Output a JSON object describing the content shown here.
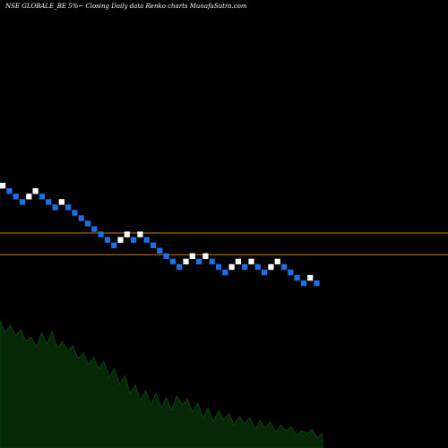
{
  "title": "NSE GLOBALE_BE 5%~  Closing Daily data  Renko  charts MunafaSutra.com",
  "colors": {
    "background": "#000000",
    "up_brick": "#ffffff",
    "down_brick": "#1e6fe6",
    "reference_line": "#c87a1e",
    "volume_fill": "#062806",
    "volume_edge": "#0d5a0d"
  },
  "chart_data": {
    "type": "renko",
    "title": "NSE GLOBALE_BE 5%~  Closing Daily data  Renko  charts MunafaSutra.com",
    "bricks": [
      {
        "dir": "up",
        "level": 0
      },
      {
        "dir": "down",
        "level": -1
      },
      {
        "dir": "down",
        "level": -2
      },
      {
        "dir": "down",
        "level": -3
      },
      {
        "dir": "up",
        "level": -2
      },
      {
        "dir": "up",
        "level": -1
      },
      {
        "dir": "down",
        "level": -2
      },
      {
        "dir": "down",
        "level": -3
      },
      {
        "dir": "down",
        "level": -4
      },
      {
        "dir": "up",
        "level": -3
      },
      {
        "dir": "down",
        "level": -4
      },
      {
        "dir": "down",
        "level": -5
      },
      {
        "dir": "down",
        "level": -6
      },
      {
        "dir": "down",
        "level": -7
      },
      {
        "dir": "down",
        "level": -8
      },
      {
        "dir": "down",
        "level": -9
      },
      {
        "dir": "down",
        "level": -10
      },
      {
        "dir": "down",
        "level": -11
      },
      {
        "dir": "up",
        "level": -10
      },
      {
        "dir": "up",
        "level": -9
      },
      {
        "dir": "down",
        "level": -10
      },
      {
        "dir": "up",
        "level": -9
      },
      {
        "dir": "down",
        "level": -10
      },
      {
        "dir": "down",
        "level": -11
      },
      {
        "dir": "down",
        "level": -12
      },
      {
        "dir": "down",
        "level": -13
      },
      {
        "dir": "down",
        "level": -14
      },
      {
        "dir": "down",
        "level": -15
      },
      {
        "dir": "up",
        "level": -14
      },
      {
        "dir": "up",
        "level": -13
      },
      {
        "dir": "down",
        "level": -14
      },
      {
        "dir": "up",
        "level": -13
      },
      {
        "dir": "down",
        "level": -14
      },
      {
        "dir": "down",
        "level": -15
      },
      {
        "dir": "down",
        "level": -16
      },
      {
        "dir": "up",
        "level": -15
      },
      {
        "dir": "up",
        "level": -14
      },
      {
        "dir": "down",
        "level": -15
      },
      {
        "dir": "up",
        "level": -14
      },
      {
        "dir": "down",
        "level": -15
      },
      {
        "dir": "down",
        "level": -16
      },
      {
        "dir": "up",
        "level": -15
      },
      {
        "dir": "up",
        "level": -14
      },
      {
        "dir": "down",
        "level": -15
      },
      {
        "dir": "down",
        "level": -16
      },
      {
        "dir": "down",
        "level": -17
      },
      {
        "dir": "down",
        "level": -18
      },
      {
        "dir": "up",
        "level": -17
      },
      {
        "dir": "down",
        "level": -18
      }
    ],
    "reference_lines": [
      -9.25,
      -13.25
    ],
    "volume_profile": [
      0.88,
      0.8,
      0.85,
      0.78,
      0.82,
      0.74,
      0.77,
      0.7,
      0.8,
      0.72,
      0.81,
      0.69,
      0.74,
      0.67,
      0.71,
      0.62,
      0.66,
      0.58,
      0.63,
      0.55,
      0.6,
      0.49,
      0.55,
      0.44,
      0.5,
      0.38,
      0.44,
      0.33,
      0.4,
      0.3,
      0.38,
      0.28,
      0.35,
      0.26,
      0.36,
      0.3,
      0.34,
      0.25,
      0.31,
      0.21,
      0.28,
      0.18,
      0.26,
      0.2,
      0.24,
      0.16,
      0.22,
      0.17,
      0.21,
      0.13,
      0.19,
      0.14,
      0.18,
      0.11,
      0.16,
      0.12,
      0.15,
      0.09,
      0.12,
      0.1,
      0.13,
      0.07,
      0.1
    ]
  }
}
